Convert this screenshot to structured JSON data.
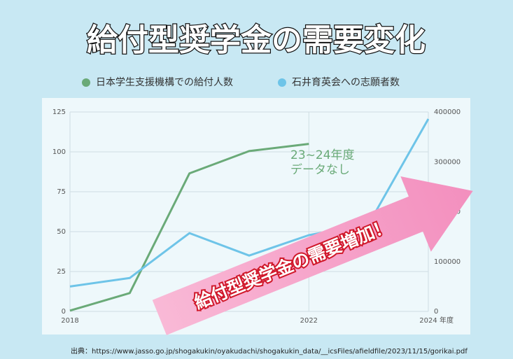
{
  "chart_data": {
    "type": "line",
    "title": "給付型奨学金の需要変化",
    "x": [
      2018,
      2019,
      2020,
      2021,
      2022,
      2023,
      2024
    ],
    "xlim": [
      2018,
      2024
    ],
    "xticks": [
      2018,
      2022,
      2024
    ],
    "x_label": "年度",
    "ylim": [
      0,
      125
    ],
    "yticks": [
      0,
      25,
      50,
      75,
      100,
      125
    ],
    "y2lim": [
      0,
      400000
    ],
    "y2ticks": [
      0,
      100000,
      200000,
      300000,
      400000
    ],
    "grid": true,
    "series": [
      {
        "name": "日本学生支援機構での給付人数",
        "color": "#6aaa78",
        "values": [
          0.5,
          11.5,
          86.5,
          100.5,
          105,
          null,
          null
        ]
      },
      {
        "name": "石井育英会への志願者数",
        "color": "#6ec4e8",
        "axis": "y2",
        "values": [
          50000,
          67000,
          157000,
          112000,
          153000,
          175000,
          386000
        ]
      }
    ],
    "annotation": [
      "23~24年度",
      "データなし"
    ],
    "arrow_text": "給付型奨学金の需要増加！",
    "source": "出典：https://www.jasso.go.jp/shogakukin/oyakudachi/shogakukin_data/__icsFiles/afieldfile/2023/11/15/gorikai.pdf"
  }
}
